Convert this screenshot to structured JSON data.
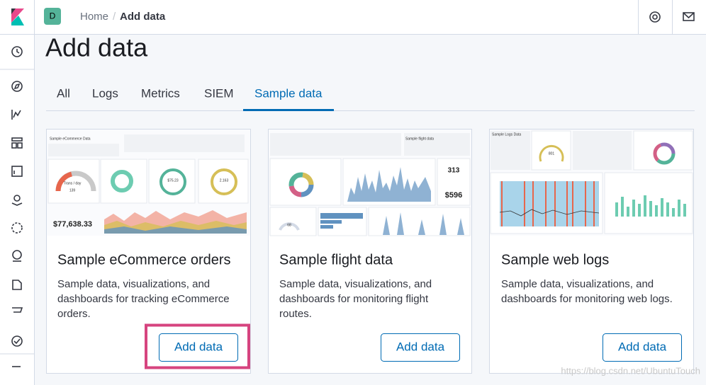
{
  "header": {
    "avatar": "D",
    "breadcrumbs": [
      "Home",
      "Add data"
    ]
  },
  "page": {
    "title": "Add data",
    "tabs": [
      "All",
      "Logs",
      "Metrics",
      "SIEM",
      "Sample data"
    ],
    "active_tab": 4
  },
  "cards": [
    {
      "title": "Sample eCommerce orders",
      "description": [
        "Sample data, visualizations, and",
        "dashboards for tracking eCommerce",
        "orders."
      ],
      "button": "Add data",
      "preview": [
        "Sample eCommerce Data",
        "Trans / day",
        "139",
        "$75.23",
        "2.163",
        "$77,638.33"
      ]
    },
    {
      "title": "Sample flight data",
      "description": [
        "Sample data, visualizations, and",
        "dashboards for monitoring flight",
        "routes."
      ],
      "button": "Add data",
      "preview": [
        "Sample flight data",
        "313",
        "$596",
        "68"
      ]
    },
    {
      "title": "Sample web logs",
      "description": [
        "Sample data, visualizations, and",
        "dashboards for monitoring web logs."
      ],
      "button": "Add data",
      "preview": [
        "Sample Logs Data",
        "801"
      ]
    }
  ],
  "watermark": "https://blog.csdn.net/UbuntuTouch"
}
